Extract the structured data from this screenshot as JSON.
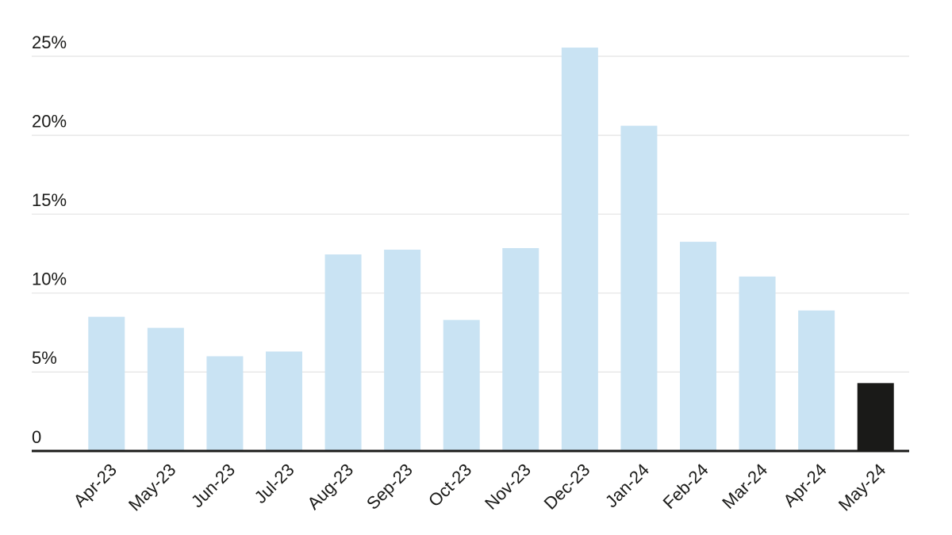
{
  "chart_data": {
    "type": "bar",
    "categories": [
      "Apr-23",
      "May-23",
      "Jun-23",
      "Jul-23",
      "Aug-23",
      "Sep-23",
      "Oct-23",
      "Nov-23",
      "Dec-23",
      "Jan-24",
      "Feb-24",
      "Mar-24",
      "Apr-24",
      "May-24"
    ],
    "values": [
      8.5,
      7.8,
      6.0,
      6.3,
      12.45,
      12.75,
      8.3,
      12.85,
      25.55,
      20.6,
      13.25,
      11.05,
      8.9,
      4.3
    ],
    "colors": [
      "#c9e3f3",
      "#c9e3f3",
      "#c9e3f3",
      "#c9e3f3",
      "#c9e3f3",
      "#c9e3f3",
      "#c9e3f3",
      "#c9e3f3",
      "#c9e3f3",
      "#c9e3f3",
      "#c9e3f3",
      "#c9e3f3",
      "#c9e3f3",
      "#1a1a18"
    ],
    "ylim": [
      0,
      26
    ],
    "yticks": [
      0,
      {
        "value": 5,
        "label": "5%"
      },
      {
        "value": 10,
        "label": "10%"
      },
      {
        "value": 15,
        "label": "15%"
      },
      {
        "value": 20,
        "label": "20%"
      },
      {
        "value": 25,
        "label": "25%"
      }
    ],
    "grid": true
  }
}
